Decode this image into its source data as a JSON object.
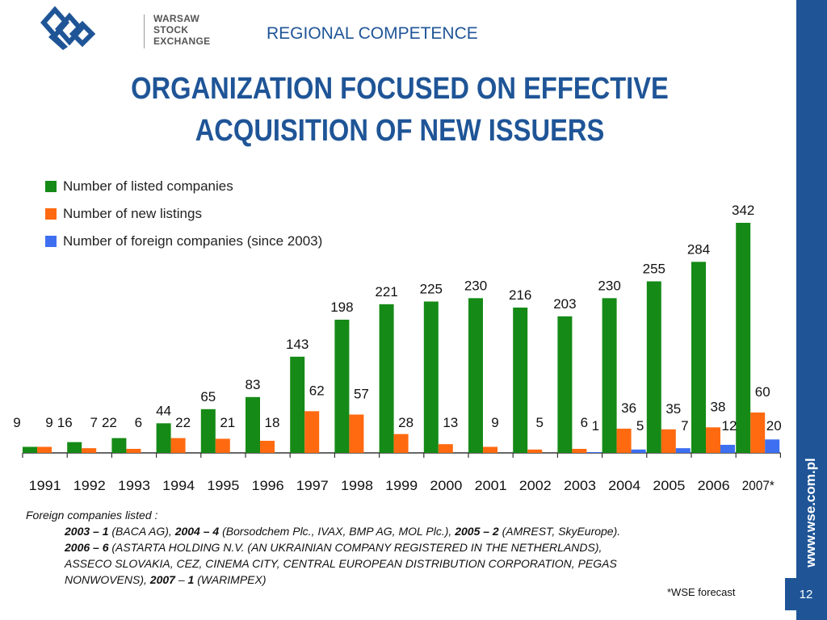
{
  "header": {
    "logo_lines": [
      "WARSAW",
      "STOCK",
      "EXCHANGE"
    ],
    "section_title": "REGIONAL COMPETENCE",
    "main_title_line1": "ORGANIZATION FOCUSED ON EFFECTIVE",
    "main_title_line2": "ACQUISITION OF NEW ISSUERS"
  },
  "chart_data": {
    "type": "bar",
    "categories": [
      "1991",
      "1992",
      "1993",
      "1994",
      "1995",
      "1996",
      "1997",
      "1998",
      "1999",
      "2000",
      "2001",
      "2002",
      "2003",
      "2004",
      "2005",
      "2006",
      "2007*"
    ],
    "series": [
      {
        "name": "Number of listed companies",
        "color": "#168a16",
        "values": [
          9,
          16,
          22,
          44,
          65,
          83,
          143,
          198,
          221,
          225,
          230,
          216,
          203,
          230,
          255,
          284,
          342
        ]
      },
      {
        "name": "Number of new  listings",
        "color": "#ff6a10",
        "values": [
          9,
          7,
          6,
          22,
          21,
          18,
          62,
          57,
          28,
          13,
          9,
          5,
          6,
          36,
          35,
          38,
          60
        ]
      },
      {
        "name": "Number of foreign companies (since 2003)",
        "color": "#3d6ff0",
        "values": [
          null,
          null,
          null,
          null,
          null,
          null,
          null,
          null,
          null,
          null,
          null,
          null,
          1,
          5,
          7,
          12,
          20
        ]
      }
    ],
    "ylim": [
      0,
      360
    ],
    "grid": false,
    "legend_position": "top-left"
  },
  "footnote": {
    "intro": "Foreign companies listed :",
    "line1": [
      {
        "text": "2003 – 1",
        "bold": true
      },
      {
        "text": " (BACA AG), ",
        "bold": false
      },
      {
        "text": "2004 – 4",
        "bold": true
      },
      {
        "text": " (Borsodchem Plc., IVAX, BMP AG, MOL Plc.), ",
        "bold": false
      },
      {
        "text": "2005 – 2",
        "bold": true
      },
      {
        "text": " (AMREST, SkyEurope).",
        "bold": false
      }
    ],
    "line2": [
      {
        "text": "2006 – 6",
        "bold": true
      },
      {
        "text": " (ASTARTA HOLDING N.V. (AN UKRAINIAN COMPANY REGISTERED IN THE NETHERLANDS),",
        "bold": false
      }
    ],
    "line3": [
      {
        "text": "ASSECO  SLOVAKIA, CEZ, CINEMA CITY, CENTRAL EUROPEAN DISTRIBUTION CORPORATION, PEGAS",
        "bold": false
      }
    ],
    "line4": [
      {
        "text": "NONWOVENS), ",
        "bold": false
      },
      {
        "text": "2007",
        "bold": true
      },
      {
        "text": " – ",
        "bold": false
      },
      {
        "text": "1",
        "bold": true
      },
      {
        "text": " (WARIMPEX)",
        "bold": false
      }
    ]
  },
  "forecast_note": "*WSE forecast",
  "sidebar_url": "www.wse.com.pl",
  "page_number": "12"
}
